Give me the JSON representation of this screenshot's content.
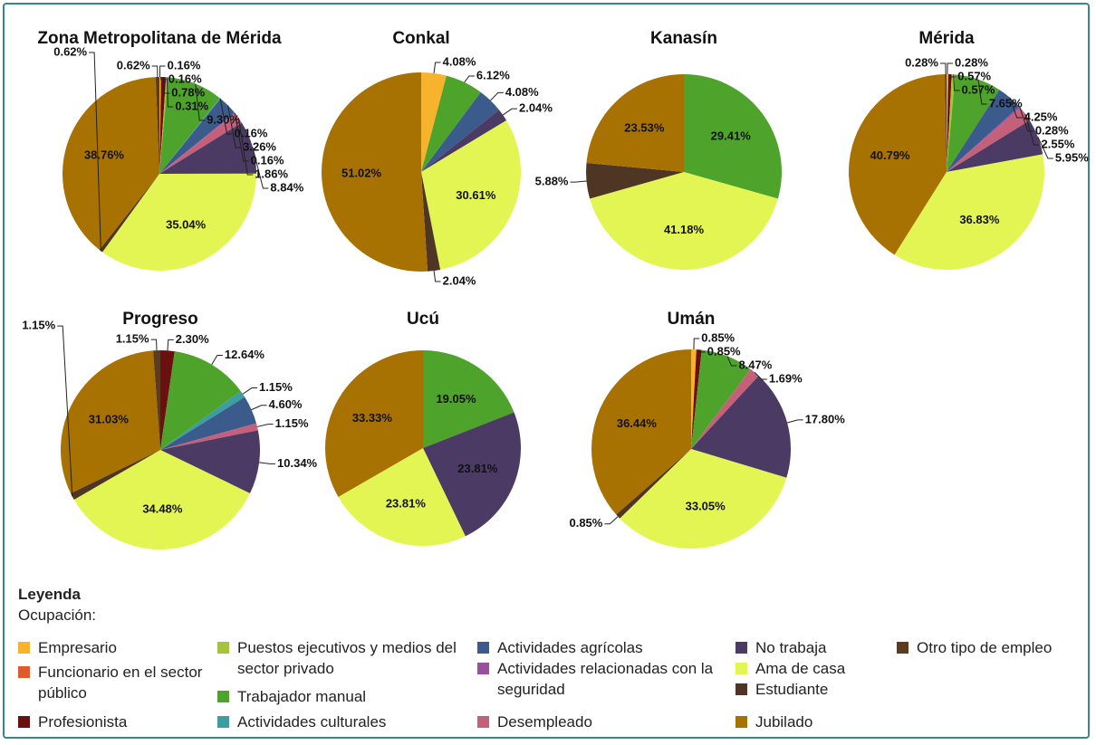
{
  "chart_data": [
    {
      "type": "pie",
      "title": "Zona Metropolitana de Mérida",
      "categories": [
        "Empresario",
        "Funcionario en el sector público",
        "Profesionista",
        "Puestos ejecutivos y medios del sector privado",
        "Trabajador manual",
        "Actividades culturales",
        "Actividades agrícolas",
        "Actividades relacionadas con la seguridad",
        "Desempleado",
        "No trabaja",
        "Ama de casa",
        "Estudiante",
        "Jubilado",
        "Otro tipo de empleo"
      ],
      "values": [
        0.16,
        0.16,
        0.78,
        0.31,
        9.3,
        0.16,
        3.26,
        0.16,
        1.86,
        8.84,
        35.04,
        0.62,
        38.76,
        0.62
      ],
      "value_labels": [
        "0.16%",
        "0.16%",
        "0.78%",
        "0.31%",
        "9.30%",
        "0.16%",
        "3.26%",
        "0.16%",
        "1.86%",
        "8.84%",
        "35.04%",
        "0.62%",
        "38.76%",
        "0.62%"
      ]
    },
    {
      "type": "pie",
      "title": "Conkal",
      "categories": [
        "Empresario",
        "Trabajador manual",
        "Actividades agrícolas",
        "No trabaja",
        "Ama de casa",
        "Estudiante",
        "Jubilado"
      ],
      "values": [
        4.08,
        6.12,
        4.08,
        2.04,
        30.61,
        2.04,
        51.02
      ],
      "value_labels": [
        "4.08%",
        "6.12%",
        "4.08%",
        "2.04%",
        "30.61%",
        "2.04%",
        "51.02%"
      ]
    },
    {
      "type": "pie",
      "title": "Kanasín",
      "categories": [
        "Trabajador manual",
        "Ama de casa",
        "Estudiante",
        "Jubilado"
      ],
      "values": [
        29.41,
        41.18,
        5.88,
        23.53
      ],
      "value_labels": [
        "29.41%",
        "41.18%",
        "5.88%",
        "23.53%"
      ]
    },
    {
      "type": "pie",
      "title": "Mérida",
      "categories": [
        "Empresario",
        "Profesionista",
        "Puestos ejecutivos y medios del sector privado",
        "Trabajador manual",
        "Actividades agrícolas",
        "Actividades relacionadas con la seguridad",
        "Desempleado",
        "No trabaja",
        "Ama de casa",
        "Jubilado",
        "Otro tipo de empleo"
      ],
      "values": [
        0.28,
        0.57,
        0.57,
        7.65,
        4.25,
        0.28,
        2.55,
        5.95,
        36.83,
        40.79,
        0.28
      ],
      "value_labels": [
        "0.28%",
        "0.57%",
        "0.57%",
        "7.65%",
        "4.25%",
        "0.28%",
        "2.55%",
        "5.95%",
        "36.83%",
        "40.79%",
        "0.28%"
      ]
    },
    {
      "type": "pie",
      "title": "Progreso",
      "categories": [
        "Profesionista",
        "Trabajador manual",
        "Actividades culturales",
        "Actividades agrícolas",
        "Desempleado",
        "No trabaja",
        "Ama de casa",
        "Estudiante",
        "Jubilado",
        "Otro tipo de empleo"
      ],
      "values": [
        2.3,
        12.64,
        1.15,
        4.6,
        1.15,
        10.34,
        34.48,
        1.15,
        31.03,
        1.15
      ],
      "value_labels": [
        "2.30%",
        "12.64%",
        "1.15%",
        "4.60%",
        "1.15%",
        "10.34%",
        "34.48%",
        "1.15%",
        "31.03%",
        "1.15%"
      ]
    },
    {
      "type": "pie",
      "title": "Ucú",
      "categories": [
        "Trabajador manual",
        "No trabaja",
        "Ama de casa",
        "Jubilado"
      ],
      "values": [
        19.05,
        23.81,
        23.81,
        33.33
      ],
      "value_labels": [
        "19.05%",
        "23.81%",
        "23.81%",
        "33.33%"
      ]
    },
    {
      "type": "pie",
      "title": "Umán",
      "categories": [
        "Empresario",
        "Profesionista",
        "Trabajador manual",
        "Desempleado",
        "No trabaja",
        "Ama de casa",
        "Estudiante",
        "Jubilado"
      ],
      "values": [
        0.85,
        0.85,
        8.47,
        1.69,
        17.8,
        33.05,
        0.85,
        36.44
      ],
      "value_labels": [
        "0.85%",
        "0.85%",
        "8.47%",
        "1.69%",
        "17.80%",
        "33.05%",
        "0.85%",
        "36.44%"
      ]
    }
  ],
  "legend": {
    "title": "Leyenda",
    "subtitle": "Ocupación:",
    "items": [
      {
        "name": "Empresario",
        "color": "#f7b32b"
      },
      {
        "name": "Funcionario en el sector público",
        "color": "#e05a2b"
      },
      {
        "name": "Profesionista",
        "color": "#6a1010"
      },
      {
        "name": "Puestos ejecutivos y medios del sector privado",
        "color": "#a6c43a"
      },
      {
        "name": "Trabajador manual",
        "color": "#4ea42a"
      },
      {
        "name": "Actividades culturales",
        "color": "#3c9ea0"
      },
      {
        "name": "Actividades agrícolas",
        "color": "#3b5b8c"
      },
      {
        "name": "Actividades relacionadas con la seguridad",
        "color": "#9c4f9c"
      },
      {
        "name": "Desempleado",
        "color": "#c4607a"
      },
      {
        "name": "No trabaja",
        "color": "#4b3a63"
      },
      {
        "name": "Ama de casa",
        "color": "#e3f552"
      },
      {
        "name": "Estudiante",
        "color": "#4e3524"
      },
      {
        "name": "Jubilado",
        "color": "#a87203"
      },
      {
        "name": "Otro tipo de empleo",
        "color": "#5c3b1e"
      }
    ]
  }
}
